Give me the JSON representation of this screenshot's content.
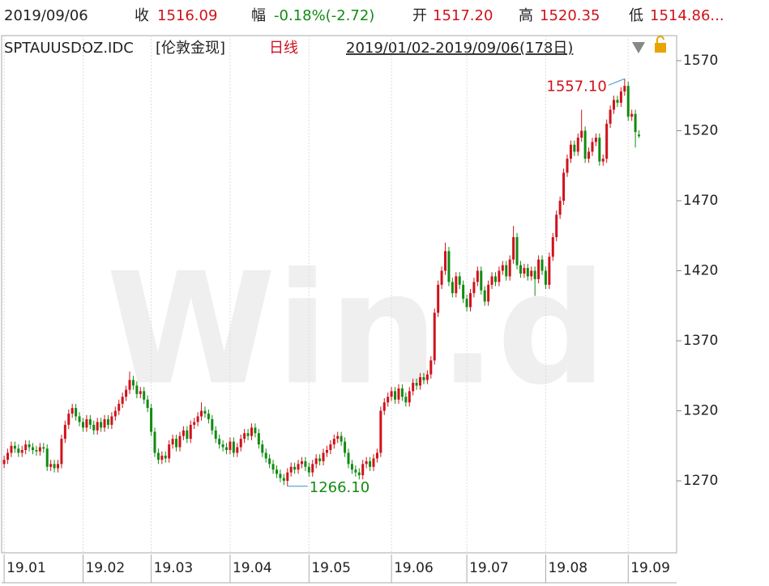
{
  "header": {
    "date": "2019/09/06",
    "close_label": "收",
    "close": "1516.09",
    "change_label": "幅",
    "change": "-0.18%(-2.72)",
    "open_label": "开",
    "open": "1517.20",
    "high_label": "高",
    "high": "1520.35",
    "low_label": "低",
    "low": "1514.86...",
    "code": "SPTAUUSDOZ.IDC",
    "name": "[伦敦金现]",
    "period": "日线",
    "range": "2019/01/02-2019/09/06(178日)"
  },
  "chart_data": {
    "type": "candlestick",
    "watermark": "Win.d",
    "up_color": "#d0121b",
    "down_color": "#138a13",
    "ylim": [
      1218.6,
      1587.9
    ],
    "yticks": [
      1270,
      1320,
      1370,
      1420,
      1470,
      1520,
      1570
    ],
    "xlim": [
      -0.7,
      187.5
    ],
    "xticks": [
      {
        "value": 0,
        "label": "19.01"
      },
      {
        "value": 22,
        "label": "19.02"
      },
      {
        "value": 41,
        "label": "19.03"
      },
      {
        "value": 63,
        "label": "19.04"
      },
      {
        "value": 85,
        "label": "19.05"
      },
      {
        "value": 108,
        "label": "19.06"
      },
      {
        "value": 129,
        "label": "19.07"
      },
      {
        "value": 151,
        "label": "19.08"
      },
      {
        "value": 174,
        "label": "19.09"
      }
    ],
    "grid": true,
    "annotations": [
      {
        "text": "1557.10",
        "index": 173,
        "value": 1557.1,
        "color": "#d0121b"
      },
      {
        "text": "1266.10",
        "index": 79,
        "value": 1266.1,
        "color": "#138a13"
      }
    ],
    "ohlc": [
      [
        1282,
        1288,
        1279,
        1285
      ],
      [
        1285,
        1293,
        1282,
        1290
      ],
      [
        1290,
        1298,
        1287,
        1295
      ],
      [
        1295,
        1298,
        1290,
        1293
      ],
      [
        1293,
        1296,
        1287,
        1290
      ],
      [
        1290,
        1295,
        1287,
        1292
      ],
      [
        1292,
        1299,
        1289,
        1296
      ],
      [
        1296,
        1299,
        1291,
        1294
      ],
      [
        1294,
        1297,
        1289,
        1292
      ],
      [
        1292,
        1295,
        1288,
        1291
      ],
      [
        1291,
        1297,
        1288,
        1294
      ],
      [
        1294,
        1297,
        1290,
        1293
      ],
      [
        1293,
        1296,
        1277,
        1280
      ],
      [
        1280,
        1285,
        1277,
        1282
      ],
      [
        1282,
        1285,
        1276,
        1279
      ],
      [
        1279,
        1285,
        1276,
        1282
      ],
      [
        1282,
        1303,
        1279,
        1300
      ],
      [
        1300,
        1313,
        1297,
        1310
      ],
      [
        1310,
        1321,
        1307,
        1318
      ],
      [
        1318,
        1325,
        1315,
        1322
      ],
      [
        1322,
        1325,
        1313,
        1316
      ],
      [
        1316,
        1319,
        1309,
        1312
      ],
      [
        1312,
        1315,
        1305,
        1308
      ],
      [
        1308,
        1317,
        1305,
        1314
      ],
      [
        1314,
        1317,
        1307,
        1310
      ],
      [
        1310,
        1313,
        1303,
        1306
      ],
      [
        1306,
        1315,
        1303,
        1312
      ],
      [
        1312,
        1315,
        1305,
        1308
      ],
      [
        1308,
        1317,
        1305,
        1314
      ],
      [
        1314,
        1317,
        1307,
        1310
      ],
      [
        1310,
        1319,
        1307,
        1316
      ],
      [
        1316,
        1323,
        1313,
        1320
      ],
      [
        1320,
        1328,
        1317,
        1325
      ],
      [
        1325,
        1333,
        1322,
        1330
      ],
      [
        1330,
        1338,
        1327,
        1335
      ],
      [
        1335,
        1348,
        1332,
        1342
      ],
      [
        1342,
        1345,
        1335,
        1338
      ],
      [
        1338,
        1341,
        1329,
        1332
      ],
      [
        1332,
        1337,
        1329,
        1334
      ],
      [
        1334,
        1337,
        1325,
        1328
      ],
      [
        1328,
        1331,
        1319,
        1322
      ],
      [
        1322,
        1325,
        1302,
        1305
      ],
      [
        1305,
        1308,
        1287,
        1290
      ],
      [
        1290,
        1293,
        1282,
        1285
      ],
      [
        1285,
        1291,
        1282,
        1288
      ],
      [
        1288,
        1291,
        1283,
        1286
      ],
      [
        1286,
        1299,
        1283,
        1296
      ],
      [
        1296,
        1303,
        1293,
        1300
      ],
      [
        1300,
        1303,
        1291,
        1294
      ],
      [
        1294,
        1305,
        1291,
        1302
      ],
      [
        1302,
        1309,
        1299,
        1306
      ],
      [
        1306,
        1309,
        1297,
        1300
      ],
      [
        1300,
        1313,
        1297,
        1310
      ],
      [
        1310,
        1315,
        1307,
        1312
      ],
      [
        1312,
        1319,
        1309,
        1316
      ],
      [
        1316,
        1326,
        1313,
        1320
      ],
      [
        1320,
        1323,
        1315,
        1318
      ],
      [
        1318,
        1321,
        1311,
        1314
      ],
      [
        1314,
        1317,
        1303,
        1306
      ],
      [
        1306,
        1309,
        1297,
        1300
      ],
      [
        1300,
        1303,
        1293,
        1296
      ],
      [
        1296,
        1299,
        1291,
        1294
      ],
      [
        1294,
        1297,
        1289,
        1292
      ],
      [
        1292,
        1301,
        1289,
        1298
      ],
      [
        1298,
        1301,
        1287,
        1290
      ],
      [
        1290,
        1297,
        1287,
        1294
      ],
      [
        1294,
        1303,
        1291,
        1300
      ],
      [
        1300,
        1307,
        1297,
        1304
      ],
      [
        1304,
        1307,
        1299,
        1302
      ],
      [
        1302,
        1311,
        1299,
        1308
      ],
      [
        1308,
        1311,
        1301,
        1304
      ],
      [
        1304,
        1307,
        1293,
        1296
      ],
      [
        1296,
        1299,
        1287,
        1290
      ],
      [
        1290,
        1293,
        1283,
        1286
      ],
      [
        1286,
        1289,
        1279,
        1282
      ],
      [
        1282,
        1285,
        1275,
        1278
      ],
      [
        1278,
        1281,
        1272,
        1275
      ],
      [
        1275,
        1278,
        1269,
        1272
      ],
      [
        1272,
        1275,
        1267,
        1270
      ],
      [
        1270,
        1279,
        1266.1,
        1276
      ],
      [
        1276,
        1283,
        1273,
        1280
      ],
      [
        1280,
        1283,
        1275,
        1278
      ],
      [
        1278,
        1285,
        1275,
        1282
      ],
      [
        1282,
        1287,
        1279,
        1284
      ],
      [
        1284,
        1287,
        1277,
        1280
      ],
      [
        1280,
        1283,
        1273,
        1276
      ],
      [
        1276,
        1285,
        1273,
        1282
      ],
      [
        1282,
        1289,
        1279,
        1286
      ],
      [
        1286,
        1289,
        1281,
        1284
      ],
      [
        1284,
        1293,
        1281,
        1290
      ],
      [
        1290,
        1295,
        1287,
        1292
      ],
      [
        1292,
        1299,
        1289,
        1296
      ],
      [
        1296,
        1303,
        1293,
        1300
      ],
      [
        1300,
        1305,
        1297,
        1302
      ],
      [
        1302,
        1305,
        1295,
        1298
      ],
      [
        1298,
        1301,
        1287,
        1290
      ],
      [
        1290,
        1293,
        1279,
        1282
      ],
      [
        1282,
        1285,
        1275,
        1278
      ],
      [
        1278,
        1281,
        1273,
        1276
      ],
      [
        1276,
        1279,
        1271,
        1274
      ],
      [
        1274,
        1285,
        1271,
        1282
      ],
      [
        1282,
        1287,
        1279,
        1284
      ],
      [
        1284,
        1287,
        1277,
        1280
      ],
      [
        1280,
        1289,
        1277,
        1286
      ],
      [
        1286,
        1293,
        1283,
        1290
      ],
      [
        1290,
        1323,
        1287,
        1320
      ],
      [
        1320,
        1329,
        1317,
        1326
      ],
      [
        1326,
        1333,
        1323,
        1330
      ],
      [
        1330,
        1337,
        1327,
        1334
      ],
      [
        1334,
        1337,
        1325,
        1328
      ],
      [
        1328,
        1339,
        1325,
        1336
      ],
      [
        1336,
        1339,
        1327,
        1330
      ],
      [
        1330,
        1333,
        1323,
        1326
      ],
      [
        1326,
        1337,
        1323,
        1334
      ],
      [
        1334,
        1343,
        1331,
        1340
      ],
      [
        1340,
        1343,
        1335,
        1338
      ],
      [
        1338,
        1347,
        1335,
        1344
      ],
      [
        1344,
        1347,
        1339,
        1342
      ],
      [
        1342,
        1349,
        1339,
        1346
      ],
      [
        1346,
        1359,
        1343,
        1356
      ],
      [
        1356,
        1393,
        1353,
        1390
      ],
      [
        1390,
        1413,
        1387,
        1410
      ],
      [
        1410,
        1423,
        1407,
        1420
      ],
      [
        1420,
        1440,
        1417,
        1434
      ],
      [
        1434,
        1437,
        1409,
        1412
      ],
      [
        1412,
        1415,
        1401,
        1404
      ],
      [
        1404,
        1419,
        1401,
        1416
      ],
      [
        1416,
        1419,
        1407,
        1410
      ],
      [
        1410,
        1413,
        1397,
        1400
      ],
      [
        1400,
        1403,
        1391,
        1394
      ],
      [
        1394,
        1407,
        1391,
        1404
      ],
      [
        1404,
        1415,
        1401,
        1412
      ],
      [
        1412,
        1423,
        1409,
        1420
      ],
      [
        1420,
        1423,
        1403,
        1406
      ],
      [
        1406,
        1409,
        1395,
        1398
      ],
      [
        1398,
        1413,
        1395,
        1410
      ],
      [
        1410,
        1419,
        1407,
        1416
      ],
      [
        1416,
        1419,
        1409,
        1412
      ],
      [
        1412,
        1423,
        1409,
        1420
      ],
      [
        1420,
        1427,
        1417,
        1424
      ],
      [
        1424,
        1427,
        1413,
        1416
      ],
      [
        1416,
        1431,
        1413,
        1428
      ],
      [
        1428,
        1452,
        1425,
        1444
      ],
      [
        1444,
        1447,
        1421,
        1424
      ],
      [
        1424,
        1427,
        1415,
        1418
      ],
      [
        1418,
        1425,
        1415,
        1422
      ],
      [
        1422,
        1425,
        1413,
        1416
      ],
      [
        1416,
        1423,
        1413,
        1420
      ],
      [
        1420,
        1423,
        1402,
        1414
      ],
      [
        1414,
        1431,
        1411,
        1428
      ],
      [
        1428,
        1431,
        1417,
        1420
      ],
      [
        1420,
        1423,
        1407,
        1410
      ],
      [
        1410,
        1433,
        1407,
        1430
      ],
      [
        1430,
        1447,
        1427,
        1444
      ],
      [
        1444,
        1463,
        1441,
        1460
      ],
      [
        1460,
        1473,
        1457,
        1470
      ],
      [
        1470,
        1493,
        1467,
        1490
      ],
      [
        1490,
        1503,
        1487,
        1500
      ],
      [
        1500,
        1513,
        1497,
        1510
      ],
      [
        1510,
        1513,
        1502,
        1505
      ],
      [
        1505,
        1518,
        1502,
        1515
      ],
      [
        1515,
        1535,
        1512,
        1520
      ],
      [
        1520,
        1523,
        1497,
        1500
      ],
      [
        1500,
        1508,
        1497,
        1505
      ],
      [
        1505,
        1515,
        1502,
        1512
      ],
      [
        1512,
        1518,
        1509,
        1515
      ],
      [
        1515,
        1518,
        1495,
        1498
      ],
      [
        1498,
        1503,
        1495,
        1500
      ],
      [
        1500,
        1528,
        1497,
        1525
      ],
      [
        1525,
        1538,
        1522,
        1535
      ],
      [
        1535,
        1545,
        1532,
        1542
      ],
      [
        1542,
        1545,
        1537,
        1540
      ],
      [
        1540,
        1551,
        1537,
        1548
      ],
      [
        1548,
        1557.1,
        1545,
        1552
      ],
      [
        1552,
        1555,
        1527,
        1530
      ],
      [
        1530,
        1535,
        1527,
        1532
      ],
      [
        1532,
        1535,
        1508,
        1519
      ],
      [
        1517.2,
        1520.35,
        1514.86,
        1516.09
      ]
    ]
  }
}
